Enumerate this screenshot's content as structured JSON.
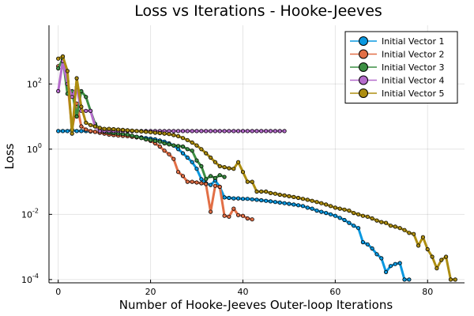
{
  "chart_data": {
    "type": "line",
    "title": "Loss vs Iterations - Hooke-Jeeves",
    "xlabel": "Number of Hooke-Jeeves Outer-loop Iterations",
    "ylabel": "Loss",
    "yscale": "log10",
    "xlim": [
      -2,
      88
    ],
    "ylim_log10": [
      -4.1,
      3.8
    ],
    "xticks": [
      0,
      20,
      40,
      60,
      80
    ],
    "yticks": [
      {
        "exp": -4,
        "label": "10",
        "sup": "-4"
      },
      {
        "exp": -2,
        "label": "10",
        "sup": "-2"
      },
      {
        "exp": 0,
        "label": "10",
        "sup": "0"
      },
      {
        "exp": 2,
        "label": "10",
        "sup": "2"
      }
    ],
    "grid": true,
    "legend_position": "top-right",
    "series": [
      {
        "name": "Initial Vector 1",
        "color": "#0a98e0",
        "x": [
          0,
          1,
          2,
          3,
          4,
          5,
          6,
          7,
          8,
          9,
          10,
          11,
          12,
          13,
          14,
          15,
          16,
          17,
          18,
          19,
          20,
          21,
          22,
          23,
          24,
          25,
          26,
          27,
          28,
          29,
          30,
          31,
          32,
          33,
          34,
          35,
          36,
          37,
          38,
          39,
          40,
          41,
          42,
          43,
          44,
          45,
          46,
          47,
          48,
          49,
          50,
          51,
          52,
          53,
          54,
          55,
          56,
          57,
          58,
          59,
          60,
          61,
          62,
          63,
          64,
          65,
          66,
          67,
          68,
          69,
          70,
          71,
          72,
          73,
          74,
          75,
          76
        ],
        "y": [
          3.6,
          3.6,
          3.6,
          3.8,
          3.6,
          3.6,
          3.6,
          3.5,
          3.4,
          3.2,
          3.1,
          3.0,
          2.9,
          2.8,
          2.7,
          2.6,
          2.5,
          2.4,
          2.3,
          2.2,
          2.1,
          2.0,
          1.85,
          1.7,
          1.5,
          1.3,
          1.0,
          0.75,
          0.55,
          0.4,
          0.25,
          0.12,
          0.09,
          0.08,
          0.11,
          0.07,
          0.033,
          0.032,
          0.031,
          0.031,
          0.03,
          0.03,
          0.029,
          0.028,
          0.027,
          0.026,
          0.025,
          0.024,
          0.023,
          0.022,
          0.021,
          0.02,
          0.019,
          0.018,
          0.016,
          0.015,
          0.013,
          0.012,
          0.011,
          0.01,
          0.009,
          0.0078,
          0.0067,
          0.0055,
          0.0045,
          0.0038,
          0.0014,
          0.0012,
          0.0009,
          0.0006,
          0.00045,
          0.00017,
          0.00026,
          0.0003,
          0.00032,
          0.0001,
          0.0001
        ]
      },
      {
        "name": "Initial Vector 2",
        "color": "#e26f46",
        "x": [
          0,
          1,
          2,
          3,
          4,
          5,
          6,
          7,
          8,
          9,
          10,
          11,
          12,
          13,
          14,
          15,
          16,
          17,
          18,
          19,
          20,
          21,
          22,
          23,
          24,
          25,
          26,
          27,
          28,
          29,
          30,
          31,
          32,
          33,
          34,
          35,
          36,
          37,
          38,
          39,
          40,
          41,
          42
        ],
        "y": [
          350,
          500,
          120,
          4,
          25,
          5,
          4,
          3.6,
          3.4,
          3.2,
          3.0,
          2.8,
          2.7,
          2.6,
          2.55,
          2.5,
          2.4,
          2.3,
          2.2,
          2.0,
          1.8,
          1.5,
          1.2,
          0.9,
          0.7,
          0.5,
          0.2,
          0.15,
          0.1,
          0.1,
          0.095,
          0.09,
          0.085,
          0.012,
          0.075,
          0.07,
          0.009,
          0.0085,
          0.015,
          0.0095,
          0.009,
          0.0075,
          0.007
        ]
      },
      {
        "name": "Initial Vector 3",
        "color": "#3c8f43",
        "x": [
          0,
          1,
          2,
          3,
          4,
          5,
          6,
          7,
          8,
          9,
          10,
          11,
          12,
          13,
          14,
          15,
          16,
          17,
          18,
          19,
          20,
          21,
          22,
          23,
          24,
          25,
          26,
          27,
          28,
          29,
          30,
          31,
          32,
          33,
          34,
          35,
          36
        ],
        "y": [
          300,
          600,
          50,
          60,
          10,
          60,
          40,
          15,
          6,
          4,
          3.4,
          3.2,
          3.1,
          3.0,
          2.9,
          2.8,
          2.6,
          2.4,
          2.2,
          2.0,
          1.9,
          1.8,
          1.7,
          1.5,
          1.4,
          1.3,
          1.25,
          1.2,
          1.0,
          0.9,
          0.45,
          0.3,
          0.12,
          0.15,
          0.13,
          0.16,
          0.14
        ]
      },
      {
        "name": "Initial Vector 4",
        "color": "#b56bcc",
        "x": [
          0,
          1,
          2,
          3,
          4,
          5,
          6,
          7,
          8,
          9,
          10,
          11,
          12,
          13,
          14,
          15,
          16,
          17,
          18,
          19,
          20,
          21,
          22,
          23,
          24,
          25,
          26,
          27,
          28,
          29,
          30,
          31,
          32,
          33,
          34,
          35,
          36,
          37,
          38,
          39,
          40,
          41,
          42,
          43,
          44,
          45,
          46,
          47,
          48,
          49
        ],
        "y": [
          60,
          500,
          100,
          40,
          80,
          15,
          15,
          15,
          5,
          3.6,
          3.6,
          3.6,
          3.6,
          3.6,
          3.6,
          3.6,
          3.6,
          3.6,
          3.6,
          3.6,
          3.6,
          3.6,
          3.6,
          3.6,
          3.6,
          3.6,
          3.6,
          3.6,
          3.6,
          3.6,
          3.6,
          3.6,
          3.6,
          3.6,
          3.6,
          3.6,
          3.6,
          3.6,
          3.6,
          3.6,
          3.6,
          3.6,
          3.6,
          3.6,
          3.6,
          3.6,
          3.6,
          3.6,
          3.6,
          3.6
        ]
      },
      {
        "name": "Initial Vector 5",
        "color": "#ad8d10",
        "x": [
          0,
          1,
          2,
          3,
          4,
          5,
          6,
          7,
          8,
          9,
          10,
          11,
          12,
          13,
          14,
          15,
          16,
          17,
          18,
          19,
          20,
          21,
          22,
          23,
          24,
          25,
          26,
          27,
          28,
          29,
          30,
          31,
          32,
          33,
          34,
          35,
          36,
          37,
          38,
          39,
          40,
          41,
          42,
          43,
          44,
          45,
          46,
          47,
          48,
          49,
          50,
          51,
          52,
          53,
          54,
          55,
          56,
          57,
          58,
          59,
          60,
          61,
          62,
          63,
          64,
          65,
          66,
          67,
          68,
          69,
          70,
          71,
          72,
          73,
          74,
          75,
          76,
          77,
          78,
          79,
          80,
          81,
          82,
          83,
          84,
          85,
          86
        ],
        "y": [
          600,
          700,
          250,
          3,
          150,
          20,
          6.5,
          5.5,
          5.0,
          4.5,
          4.2,
          4.2,
          4.1,
          4.0,
          3.9,
          3.8,
          3.7,
          3.6,
          3.5,
          3.4,
          3.3,
          3.2,
          3.1,
          3.0,
          2.9,
          2.7,
          2.5,
          2.2,
          1.9,
          1.6,
          1.3,
          1.0,
          0.75,
          0.55,
          0.4,
          0.3,
          0.28,
          0.26,
          0.25,
          0.4,
          0.2,
          0.1,
          0.1,
          0.05,
          0.05,
          0.05,
          0.045,
          0.043,
          0.04,
          0.038,
          0.036,
          0.034,
          0.032,
          0.03,
          0.028,
          0.026,
          0.024,
          0.022,
          0.02,
          0.018,
          0.016,
          0.015,
          0.014,
          0.013,
          0.011,
          0.01,
          0.009,
          0.0085,
          0.0075,
          0.0065,
          0.0058,
          0.0055,
          0.0045,
          0.0042,
          0.0038,
          0.0033,
          0.0027,
          0.0025,
          0.0011,
          0.002,
          0.00085,
          0.0005,
          0.00022,
          0.0004,
          0.0005,
          0.0001,
          0.0001
        ]
      }
    ]
  }
}
